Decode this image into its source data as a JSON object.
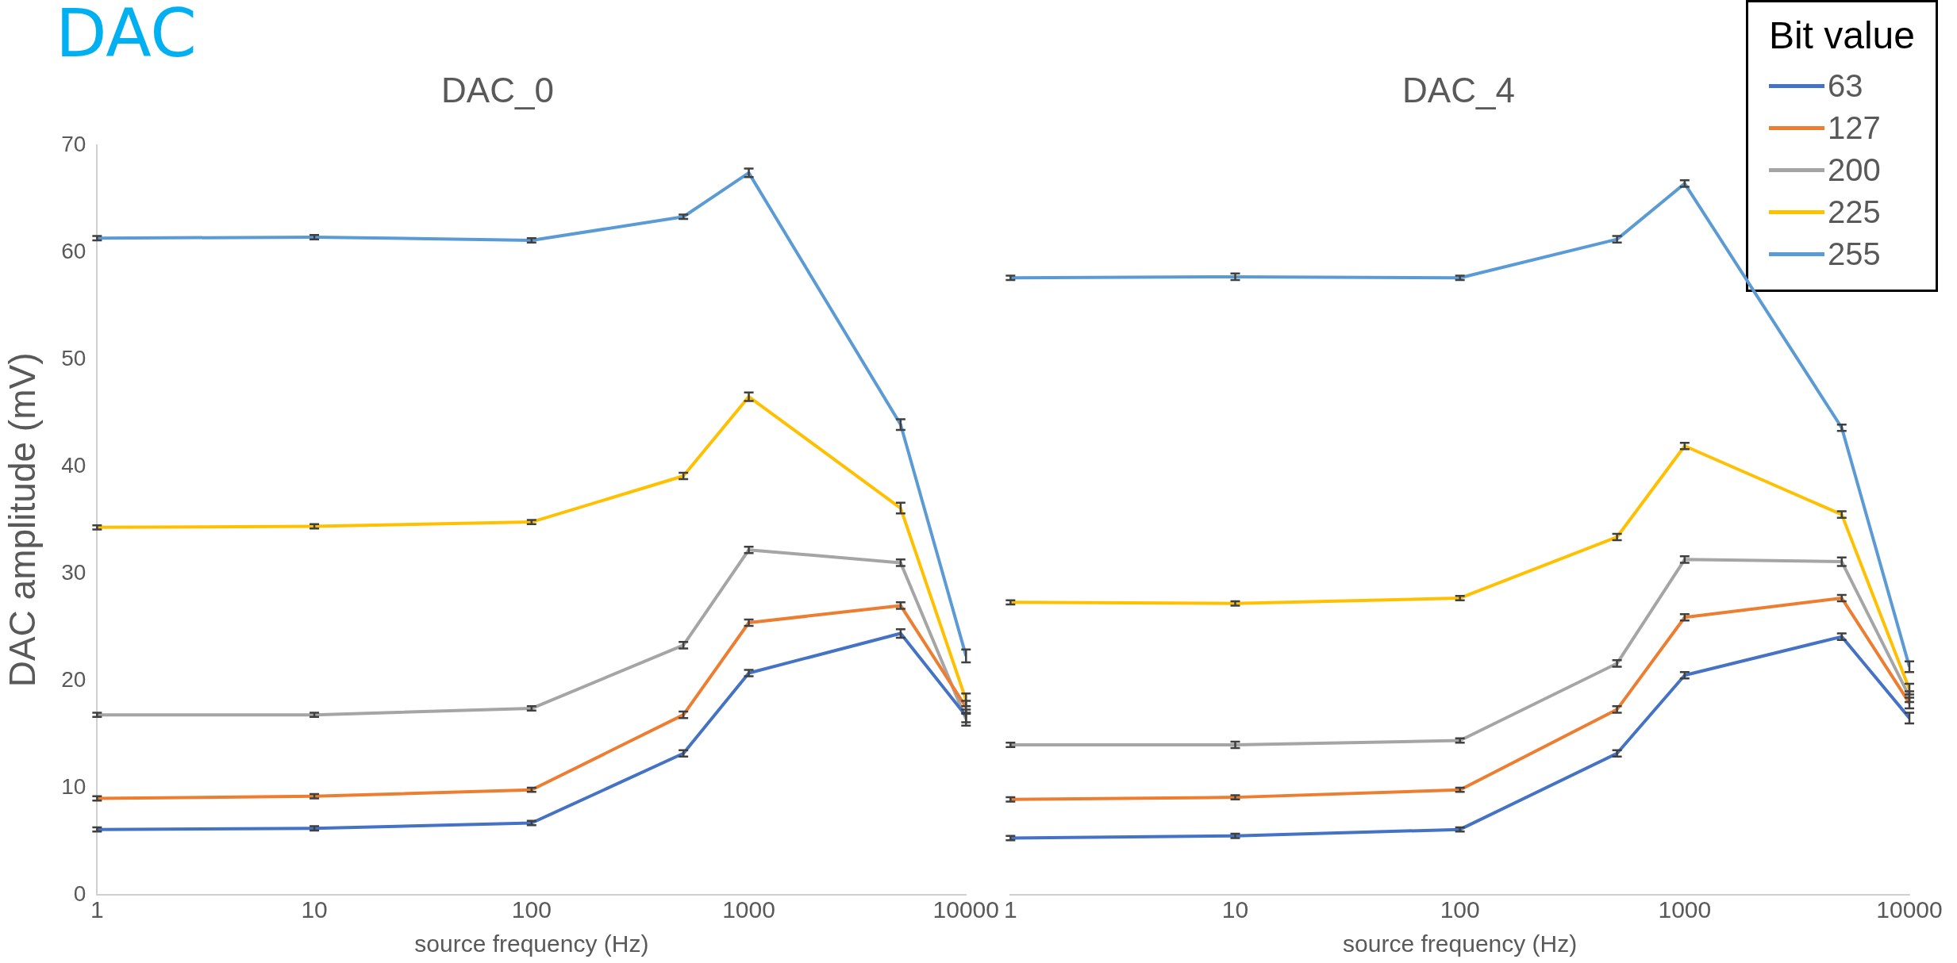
{
  "chart_data": [
    {
      "type": "line",
      "title": "DAC_0",
      "xlabel": "source frequency (Hz)",
      "ylabel": "DAC amplitude (mV)",
      "annotations": [
        "DAC"
      ],
      "x": [
        1,
        10,
        100,
        500,
        1000,
        5000,
        10000
      ],
      "log": "x",
      "xlim": [
        1,
        10000
      ],
      "xticks": [
        1,
        10,
        100,
        1000,
        10000
      ],
      "ylim": [
        0,
        70
      ],
      "yticks": [
        0,
        10,
        20,
        30,
        40,
        50,
        60,
        70
      ],
      "grid": false,
      "legend": "top right",
      "legend_title": "Bit value",
      "line_style": "solid",
      "series": [
        {
          "name": "63",
          "color": "#4472c4",
          "values": [
            6.1,
            6.2,
            6.7,
            13.2,
            20.7,
            24.4,
            16.7
          ],
          "errors": [
            0.2,
            0.2,
            0.2,
            0.3,
            0.3,
            0.4,
            0.6
          ]
        },
        {
          "name": "127",
          "color": "#ed7d31",
          "values": [
            9.0,
            9.2,
            9.8,
            16.8,
            25.4,
            27.0,
            17.5
          ],
          "errors": [
            0.2,
            0.2,
            0.2,
            0.3,
            0.3,
            0.3,
            0.6
          ]
        },
        {
          "name": "200",
          "color": "#a5a5a5",
          "values": [
            16.8,
            16.8,
            17.4,
            23.3,
            32.2,
            31.0,
            16.4
          ],
          "errors": [
            0.2,
            0.2,
            0.2,
            0.3,
            0.3,
            0.3,
            0.6
          ]
        },
        {
          "name": "225",
          "color": "#ffc000",
          "values": [
            34.3,
            34.4,
            34.8,
            39.1,
            46.5,
            36.1,
            18.2
          ],
          "errors": [
            0.2,
            0.2,
            0.2,
            0.3,
            0.4,
            0.5,
            0.6
          ]
        },
        {
          "name": "255",
          "color": "#5b9bd5",
          "values": [
            61.3,
            61.4,
            61.1,
            63.3,
            67.4,
            43.9,
            22.3
          ],
          "errors": [
            0.2,
            0.2,
            0.2,
            0.2,
            0.4,
            0.5,
            0.6
          ]
        }
      ]
    },
    {
      "type": "line",
      "title": "DAC_4",
      "xlabel": "source frequency (Hz)",
      "x": [
        1,
        10,
        100,
        500,
        1000,
        5000,
        10000
      ],
      "log": "x",
      "xlim": [
        1,
        10000
      ],
      "xticks": [
        1,
        10,
        100,
        1000,
        10000
      ],
      "ylim": [
        0,
        70
      ],
      "tick_labels": "x",
      "grid": false,
      "line_style": "solid",
      "series": [
        {
          "name": "63",
          "color": "#4472c4",
          "values": [
            5.3,
            5.5,
            6.1,
            13.2,
            20.5,
            24.1,
            16.5
          ],
          "errors": [
            0.2,
            0.2,
            0.2,
            0.3,
            0.3,
            0.3,
            0.5
          ]
        },
        {
          "name": "127",
          "color": "#ed7d31",
          "values": [
            8.9,
            9.1,
            9.8,
            17.3,
            25.9,
            27.7,
            17.9
          ],
          "errors": [
            0.2,
            0.2,
            0.2,
            0.3,
            0.3,
            0.3,
            0.5
          ]
        },
        {
          "name": "200",
          "color": "#a5a5a5",
          "values": [
            14.0,
            14.0,
            14.4,
            21.6,
            31.3,
            31.1,
            18.5
          ],
          "errors": [
            0.2,
            0.3,
            0.2,
            0.3,
            0.3,
            0.4,
            0.5
          ]
        },
        {
          "name": "225",
          "color": "#ffc000",
          "values": [
            27.3,
            27.2,
            27.7,
            33.4,
            41.9,
            35.5,
            19.2
          ],
          "errors": [
            0.2,
            0.2,
            0.2,
            0.3,
            0.3,
            0.3,
            0.5
          ]
        },
        {
          "name": "255",
          "color": "#5b9bd5",
          "values": [
            57.6,
            57.7,
            57.6,
            61.2,
            66.4,
            43.6,
            21.3
          ],
          "errors": [
            0.2,
            0.3,
            0.2,
            0.3,
            0.3,
            0.3,
            0.5
          ]
        }
      ]
    }
  ]
}
